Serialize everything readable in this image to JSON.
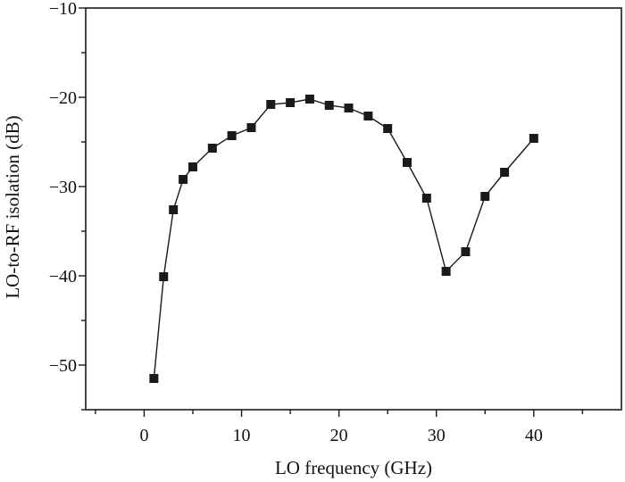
{
  "chart_data": {
    "type": "line",
    "title": "",
    "xlabel": "LO frequency (GHz)",
    "ylabel": "LO-to-RF isolation (dB)",
    "xlim": [
      -6,
      49
    ],
    "ylim": [
      -55,
      -10
    ],
    "xticks": [
      0,
      10,
      20,
      30,
      40
    ],
    "yticks": [
      -50,
      -40,
      -30,
      -20,
      -10
    ],
    "x_tick_labels": [
      "0",
      "10",
      "20",
      "30",
      "40"
    ],
    "y_tick_labels": [
      "−50",
      "−40",
      "−30",
      "−20",
      "−10"
    ],
    "x_minor_step": 5,
    "y_minor_step": 5,
    "grid": false,
    "legend": "none",
    "marker": "square",
    "color": "#1a1a1a",
    "series": [
      {
        "x": [
          1,
          2,
          3,
          4,
          5,
          7,
          9,
          11,
          13,
          15,
          17,
          19,
          21,
          23,
          25,
          27,
          29,
          31,
          33,
          35,
          37,
          40
        ],
        "y": [
          -51.5,
          -40.1,
          -32.6,
          -29.2,
          -27.8,
          -25.7,
          -24.3,
          -23.4,
          -20.8,
          -20.6,
          -20.2,
          -20.9,
          -21.2,
          -22.1,
          -23.5,
          -27.3,
          -31.3,
          -39.5,
          -37.3,
          -31.1,
          -28.4,
          -24.6
        ]
      }
    ]
  }
}
